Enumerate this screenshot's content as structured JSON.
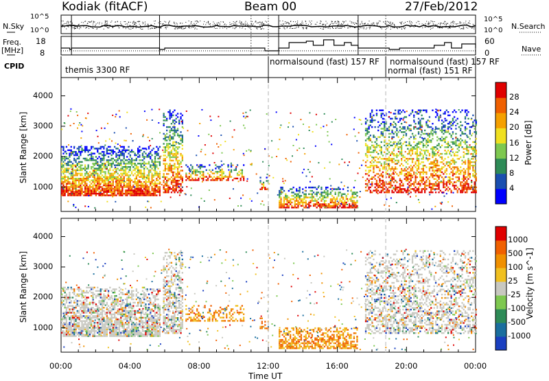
{
  "header": {
    "station": "Kodiak (fitACF)",
    "beam": "Beam 00",
    "date": "27/Feb/2012"
  },
  "side_labels": {
    "nsky": "N.Sky",
    "freq": "Freq.",
    "mhz": "[MHz]",
    "cpid": "CPID",
    "nsearch": "N.Search",
    "nave": "Nave"
  },
  "top_axes": {
    "nsky_ticks": [
      "10^5",
      "10^0"
    ],
    "nsearch_ticks": [
      "10^5",
      "10^0"
    ],
    "freq_ticks": [
      "18",
      "8"
    ],
    "nave_ticks": [
      "60",
      "0"
    ]
  },
  "cpid_labels": [
    {
      "text": "themis 3300 RF",
      "start": 0.6
    },
    {
      "text": "normalsound (fast) 157 RF",
      "start": 12.0
    },
    {
      "text": "normalsound (fast) 157 RF",
      "start": 18.8
    },
    {
      "text": "normal (fast) 151 RF",
      "start": 18.8
    }
  ],
  "chart_data": [
    {
      "type": "heatmap",
      "panel": "power",
      "xlabel": "",
      "ylabel": "Slant Range [km]",
      "xlim": [
        0,
        24
      ],
      "ylim": [
        200,
        4600
      ],
      "yticks": [
        1000,
        2000,
        3000,
        4000
      ],
      "colorbar": {
        "label": "Power [dB]",
        "ticks": [
          "4",
          "8",
          "12",
          "16",
          "20",
          "24",
          "28"
        ],
        "colors": [
          "#0000ff",
          "#1a4fb0",
          "#2e8b57",
          "#7ec850",
          "#f0e020",
          "#f5a000",
          "#f06000",
          "#e00000"
        ]
      }
    },
    {
      "type": "heatmap",
      "panel": "velocity",
      "xlabel": "Time UT",
      "ylabel": "Slant Range [km]",
      "xlim": [
        0,
        24
      ],
      "ylim": [
        200,
        4600
      ],
      "yticks": [
        1000,
        2000,
        3000,
        4000
      ],
      "xticks": [
        "00:00",
        "04:00",
        "08:00",
        "12:00",
        "16:00",
        "20:00",
        "00:00"
      ],
      "colorbar": {
        "label": "Velocity [m s^-1]",
        "ticks": [
          "1000",
          "500",
          "100",
          "25",
          "-25",
          "-100",
          "-500",
          "-1000"
        ],
        "colors": [
          "#1a3fc0",
          "#1a6e9e",
          "#2e8b57",
          "#7ec850",
          "#c8c8c0",
          "#f0c020",
          "#f09000",
          "#f06000",
          "#e00000"
        ]
      }
    }
  ]
}
